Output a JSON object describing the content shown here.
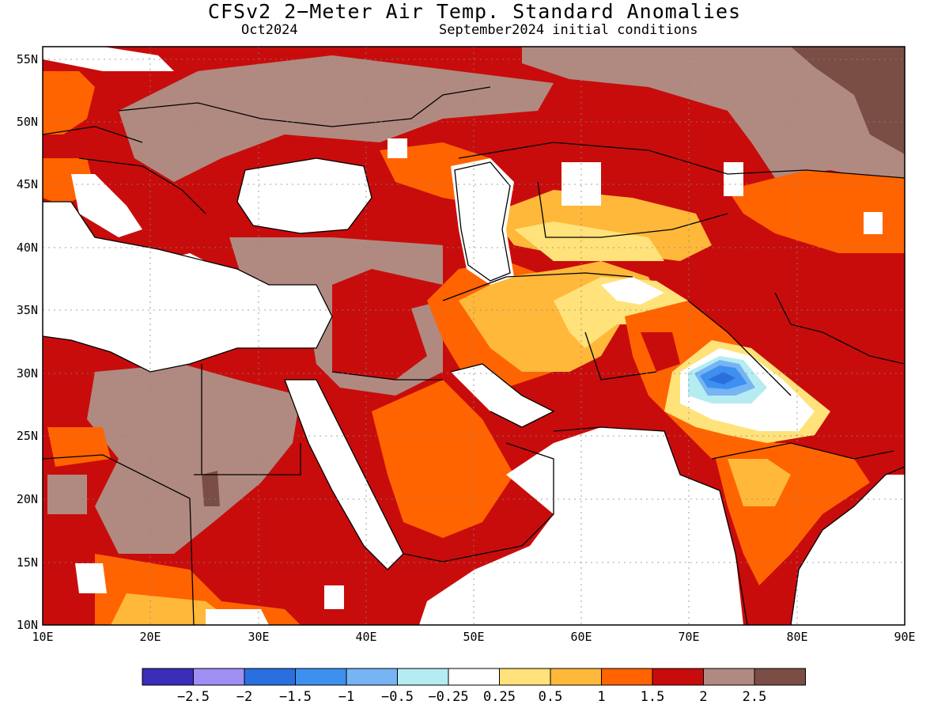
{
  "header": {
    "title": "CFSv2 2−Meter Air Temp. Standard Anomalies",
    "valid_month": "Oct2024",
    "initial_conditions": "September2024 initial conditions"
  },
  "map": {
    "lon_range": [
      10,
      90
    ],
    "lat_range": [
      10,
      56
    ],
    "lon_ticks": [
      "10E",
      "20E",
      "30E",
      "40E",
      "50E",
      "60E",
      "70E",
      "80E",
      "90E"
    ],
    "lat_ticks": [
      "10N",
      "15N",
      "20N",
      "25N",
      "30N",
      "35N",
      "40N",
      "45N",
      "50N",
      "55N"
    ],
    "gridlines": "dotted"
  },
  "colorbar": {
    "colors": [
      "#3a2db8",
      "#9f8ff5",
      "#2a6fe0",
      "#3d8ff0",
      "#76b4f4",
      "#b4ecf2",
      "#ffffff",
      "#ffe27a",
      "#ffb83a",
      "#ff6400",
      "#c80c0c",
      "#b08a80",
      "#7a4e44"
    ],
    "labels": [
      "−2.5",
      "−2",
      "−1.5",
      "−1",
      "−0.5",
      "−0.25",
      "0.25",
      "0.5",
      "1",
      "1.5",
      "2",
      "2.5"
    ]
  }
}
